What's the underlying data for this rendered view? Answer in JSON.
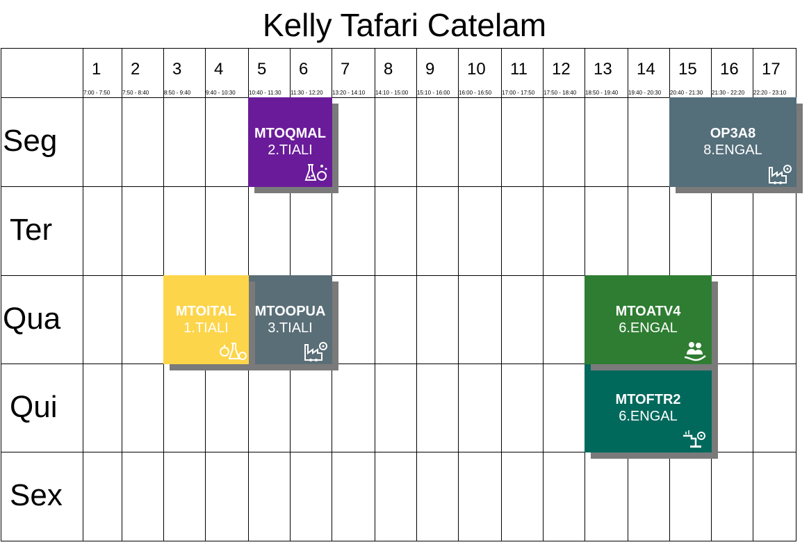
{
  "title": "Kelly Tafari Catelam",
  "periods": [
    {
      "num": "1",
      "time": "7:00 - 7:50"
    },
    {
      "num": "2",
      "time": "7:50 - 8:40"
    },
    {
      "num": "3",
      "time": "8:50 - 9:40"
    },
    {
      "num": "4",
      "time": "9:40 - 10:30"
    },
    {
      "num": "5",
      "time": "10:40 - 11:30"
    },
    {
      "num": "6",
      "time": "11:30 - 12:20"
    },
    {
      "num": "7",
      "time": "13:20 - 14:10"
    },
    {
      "num": "8",
      "time": "14:10 - 15:00"
    },
    {
      "num": "9",
      "time": "15:10 - 16:00"
    },
    {
      "num": "10",
      "time": "16:00 - 16:50"
    },
    {
      "num": "11",
      "time": "17:00 - 17:50"
    },
    {
      "num": "12",
      "time": "17:50 - 18:40"
    },
    {
      "num": "13",
      "time": "18:50 - 19:40"
    },
    {
      "num": "14",
      "time": "19:40 - 20:30"
    },
    {
      "num": "15",
      "time": "20:40 - 21:30"
    },
    {
      "num": "16",
      "time": "21:30 - 22:20"
    },
    {
      "num": "17",
      "time": "22:20 - 23:10"
    }
  ],
  "days": [
    "Seg",
    "Ter",
    "Qua",
    "Qui",
    "Sex"
  ],
  "classes": [
    {
      "code": "MTOQMAL",
      "room": "2.TIALI",
      "day": 0,
      "start": 5,
      "end": 6,
      "color": "#6a1b9a",
      "icon": "chemistry-icon"
    },
    {
      "code": "OP3A8",
      "room": "8.ENGAL",
      "day": 0,
      "start": 15,
      "end": 17,
      "color": "#546e7a",
      "icon": "industry-gear-icon"
    },
    {
      "code": "MTOITAL",
      "room": "1.TIALI",
      "day": 2,
      "start": 3,
      "end": 4,
      "color": "#fdd54b",
      "icon": "food-lab-icon"
    },
    {
      "code": "MTOOPUA",
      "room": "3.TIALI",
      "day": 2,
      "start": 5,
      "end": 6,
      "color": "#5a6e77",
      "icon": "industry-gear-icon"
    },
    {
      "code": "MTOATV4",
      "room": "6.ENGAL",
      "day": 2,
      "start": 13,
      "end": 15,
      "color": "#2e7d32",
      "icon": "people-hand-icon"
    },
    {
      "code": "MTOFTR2",
      "room": "6.ENGAL",
      "day": 3,
      "start": 13,
      "end": 15,
      "color": "#00695c",
      "icon": "pipeline-gear-icon"
    }
  ]
}
